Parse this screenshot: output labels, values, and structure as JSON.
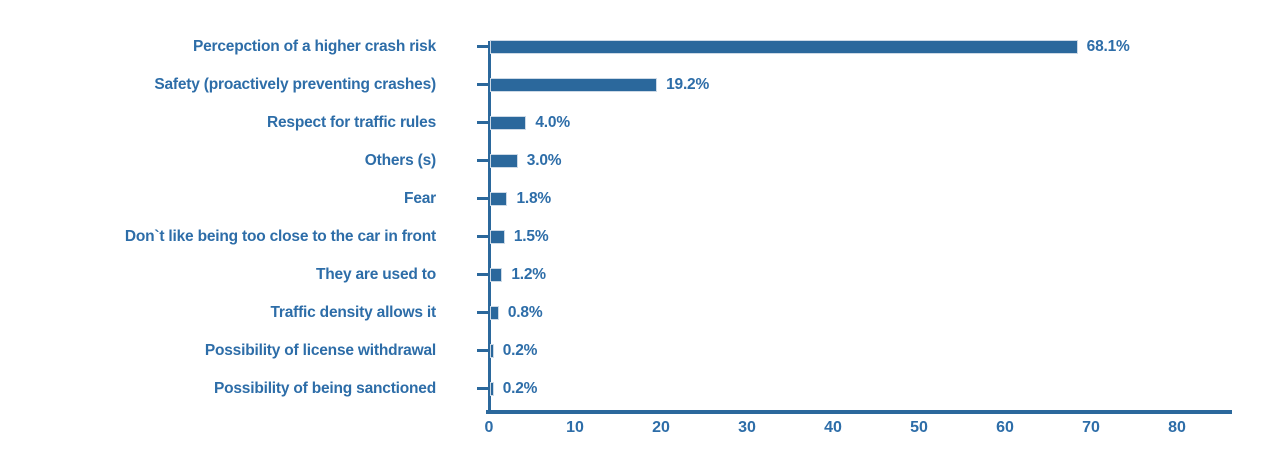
{
  "chart_data": {
    "type": "bar",
    "orientation": "horizontal",
    "title": "",
    "xlabel": "",
    "ylabel": "",
    "categories": [
      "Percepction of a higher crash risk",
      "Safety (proactively preventing crashes)",
      "Respect for traffic rules",
      "Others (s)",
      "Fear",
      "Don`t like being too close to the car in front",
      "They are used to",
      "Traffic density allows it",
      "Possibility of license withdrawal",
      "Possibility of being sanctioned"
    ],
    "values": [
      68.1,
      19.2,
      4.0,
      3.0,
      1.8,
      1.5,
      1.2,
      0.8,
      0.2,
      0.2
    ],
    "value_labels": [
      "68.1%",
      "19.2%",
      "4.0%",
      "3.0%",
      "1.8%",
      "1.5%",
      "1.2%",
      "0.8%",
      "0.2%",
      "0.2%"
    ],
    "x_ticks": [
      0,
      10,
      20,
      30,
      40,
      50,
      60,
      70,
      80
    ],
    "xlim": [
      0,
      86
    ],
    "grid": false,
    "legend": null,
    "bar_color": "#2b689c",
    "text_color": "#2d6da8",
    "axis_color": "#2b689c",
    "bar_edge_color": "#ccd9e6"
  }
}
